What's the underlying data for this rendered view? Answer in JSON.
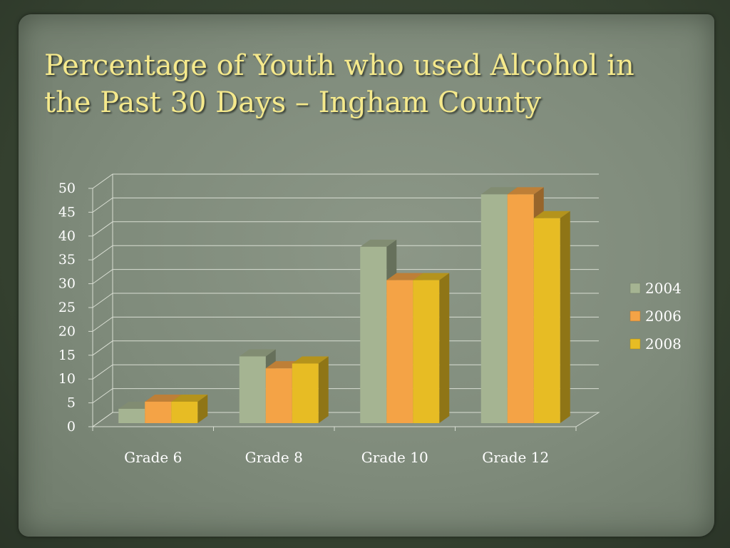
{
  "slide": {
    "title": "Percentage of Youth who used Alcohol in the Past 30 Days – Ingham County"
  },
  "chart_data": {
    "type": "bar",
    "title": "",
    "xlabel": "",
    "ylabel": "",
    "categories": [
      "Grade 6",
      "Grade 8",
      "Grade 10",
      "Grade 12"
    ],
    "series": [
      {
        "name": "2004",
        "values": [
          3,
          14,
          37,
          48
        ],
        "color": "#a5b492"
      },
      {
        "name": "2006",
        "values": [
          4.5,
          11.5,
          30,
          48
        ],
        "color": "#f4a346"
      },
      {
        "name": "2008",
        "values": [
          4.5,
          12.5,
          30,
          43
        ],
        "color": "#e7bc24"
      }
    ],
    "ylim": [
      0,
      50
    ],
    "yticks": [
      0,
      5,
      10,
      15,
      20,
      25,
      30,
      35,
      40,
      45,
      50
    ],
    "grid": true,
    "legend_position": "right",
    "style": "3d-clustered-column"
  }
}
